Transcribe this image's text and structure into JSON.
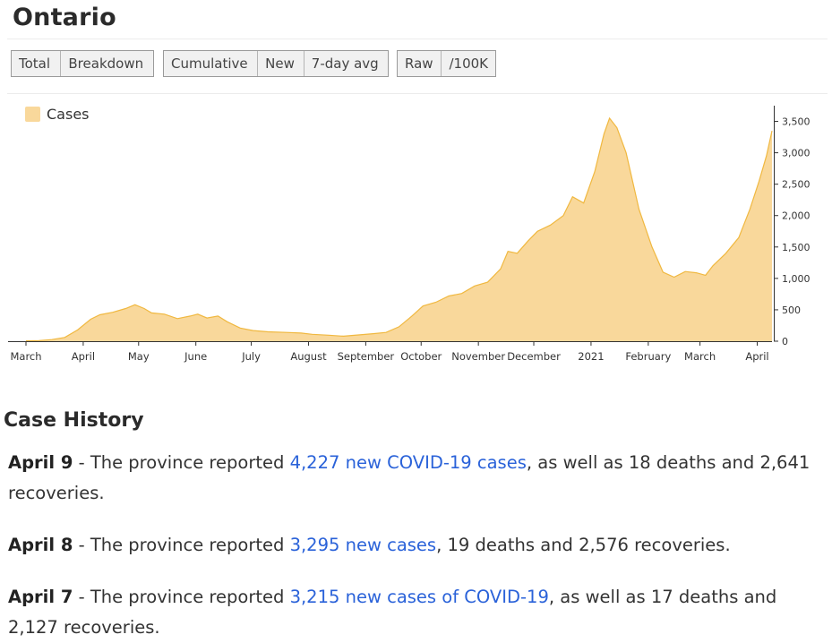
{
  "page": {
    "title": "Ontario"
  },
  "controls": {
    "group1": [
      {
        "label": "Total",
        "active": true
      },
      {
        "label": "Breakdown",
        "active": false
      }
    ],
    "group2": [
      {
        "label": "Cumulative",
        "active": false
      },
      {
        "label": "New",
        "active": false
      },
      {
        "label": "7-day avg",
        "active": true
      }
    ],
    "group3": [
      {
        "label": "Raw",
        "active": true
      },
      {
        "label": "/100K",
        "active": false
      }
    ]
  },
  "chart_data": {
    "type": "area",
    "legend": {
      "label": "Cases",
      "color": "#f9d89b",
      "position": "top-left"
    },
    "colors": {
      "fill": "#f9d89b",
      "stroke": "#f0b840"
    },
    "y_axis": {
      "position": "right",
      "ticks": [
        0,
        500,
        1000,
        1500,
        2000,
        2500,
        3000,
        3500
      ],
      "tick_labels": [
        "0",
        "500",
        "1,000",
        "1,500",
        "2,000",
        "2,500",
        "3,000",
        "3,500"
      ],
      "ylim": [
        0,
        3750
      ]
    },
    "x_axis": {
      "ticks": [
        {
          "label": "March",
          "date": "2020-03-01"
        },
        {
          "label": "April",
          "date": "2020-04-01"
        },
        {
          "label": "May",
          "date": "2020-05-01"
        },
        {
          "label": "June",
          "date": "2020-06-01"
        },
        {
          "label": "July",
          "date": "2020-07-01"
        },
        {
          "label": "August",
          "date": "2020-08-01"
        },
        {
          "label": "September",
          "date": "2020-09-01"
        },
        {
          "label": "October",
          "date": "2020-10-01"
        },
        {
          "label": "November",
          "date": "2020-11-01"
        },
        {
          "label": "December",
          "date": "2020-12-01"
        },
        {
          "label": "2021",
          "date": "2021-01-01"
        },
        {
          "label": "February",
          "date": "2021-02-01"
        },
        {
          "label": "March",
          "date": "2021-03-01"
        },
        {
          "label": "April",
          "date": "2021-04-01"
        }
      ],
      "xlim": [
        "2020-03-01",
        "2021-04-09"
      ]
    },
    "series": [
      {
        "name": "Cases",
        "points": [
          [
            "2020-03-01",
            5
          ],
          [
            "2020-03-08",
            10
          ],
          [
            "2020-03-15",
            25
          ],
          [
            "2020-03-22",
            60
          ],
          [
            "2020-03-29",
            180
          ],
          [
            "2020-04-05",
            350
          ],
          [
            "2020-04-10",
            420
          ],
          [
            "2020-04-17",
            460
          ],
          [
            "2020-04-24",
            520
          ],
          [
            "2020-04-29",
            580
          ],
          [
            "2020-05-04",
            520
          ],
          [
            "2020-05-08",
            450
          ],
          [
            "2020-05-15",
            430
          ],
          [
            "2020-05-22",
            360
          ],
          [
            "2020-05-29",
            400
          ],
          [
            "2020-06-02",
            430
          ],
          [
            "2020-06-07",
            370
          ],
          [
            "2020-06-13",
            400
          ],
          [
            "2020-06-18",
            310
          ],
          [
            "2020-06-25",
            210
          ],
          [
            "2020-07-02",
            170
          ],
          [
            "2020-07-10",
            150
          ],
          [
            "2020-07-20",
            140
          ],
          [
            "2020-07-28",
            130
          ],
          [
            "2020-08-03",
            110
          ],
          [
            "2020-08-12",
            95
          ],
          [
            "2020-08-20",
            80
          ],
          [
            "2020-08-28",
            100
          ],
          [
            "2020-09-05",
            120
          ],
          [
            "2020-09-12",
            140
          ],
          [
            "2020-09-19",
            230
          ],
          [
            "2020-09-26",
            400
          ],
          [
            "2020-10-02",
            560
          ],
          [
            "2020-10-09",
            620
          ],
          [
            "2020-10-16",
            720
          ],
          [
            "2020-10-23",
            760
          ],
          [
            "2020-10-30",
            880
          ],
          [
            "2020-11-06",
            940
          ],
          [
            "2020-11-13",
            1150
          ],
          [
            "2020-11-17",
            1430
          ],
          [
            "2020-11-22",
            1400
          ],
          [
            "2020-11-28",
            1600
          ],
          [
            "2020-12-03",
            1750
          ],
          [
            "2020-12-10",
            1850
          ],
          [
            "2020-12-17",
            2000
          ],
          [
            "2020-12-22",
            2300
          ],
          [
            "2020-12-28",
            2200
          ],
          [
            "2021-01-03",
            2700
          ],
          [
            "2021-01-08",
            3300
          ],
          [
            "2021-01-11",
            3550
          ],
          [
            "2021-01-15",
            3400
          ],
          [
            "2021-01-20",
            3000
          ],
          [
            "2021-01-27",
            2100
          ],
          [
            "2021-02-03",
            1500
          ],
          [
            "2021-02-09",
            1100
          ],
          [
            "2021-02-15",
            1020
          ],
          [
            "2021-02-21",
            1110
          ],
          [
            "2021-02-27",
            1090
          ],
          [
            "2021-03-04",
            1050
          ],
          [
            "2021-03-08",
            1200
          ],
          [
            "2021-03-15",
            1400
          ],
          [
            "2021-03-22",
            1650
          ],
          [
            "2021-03-28",
            2100
          ],
          [
            "2021-04-02",
            2550
          ],
          [
            "2021-04-06",
            2950
          ],
          [
            "2021-04-09",
            3350
          ]
        ]
      }
    ]
  },
  "history": {
    "title": "Case History",
    "entries": [
      {
        "date": "April 9",
        "pre": " - The province reported ",
        "link": "4,227 new COVID-19 cases",
        "post": ", as well as 18 deaths and 2,641 recoveries."
      },
      {
        "date": "April 8",
        "pre": " - The province reported ",
        "link": "3,295 new cases",
        "post": ", 19 deaths and 2,576 recoveries."
      },
      {
        "date": "April 7",
        "pre": " - The province reported ",
        "link": "3,215 new cases of COVID-19",
        "post": ", as well as 17 deaths and 2,127 recoveries."
      }
    ]
  }
}
